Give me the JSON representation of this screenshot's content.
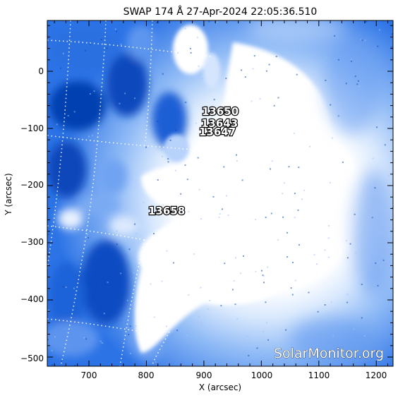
{
  "title": "SWAP 174 Å 27-Apr-2024 22:05:36.510",
  "x_axis": {
    "label": "X (arcsec)",
    "ticks": [
      "700",
      "800",
      "900",
      "1000",
      "1100",
      "1200"
    ]
  },
  "y_axis": {
    "label": "Y (arcsec)",
    "ticks": [
      "0",
      "−100",
      "−200",
      "−300",
      "−400",
      "−500"
    ]
  },
  "regions": [
    {
      "number": "13650"
    },
    {
      "number": "13643"
    },
    {
      "number": "13647"
    },
    {
      "number": "13658"
    }
  ],
  "watermark": "SolarMonitor.org",
  "colors": {
    "background_dark": "#0a4fc8",
    "mid": "#4f8ef0",
    "light": "#a9cbfb",
    "saturated": "#ffffff"
  }
}
